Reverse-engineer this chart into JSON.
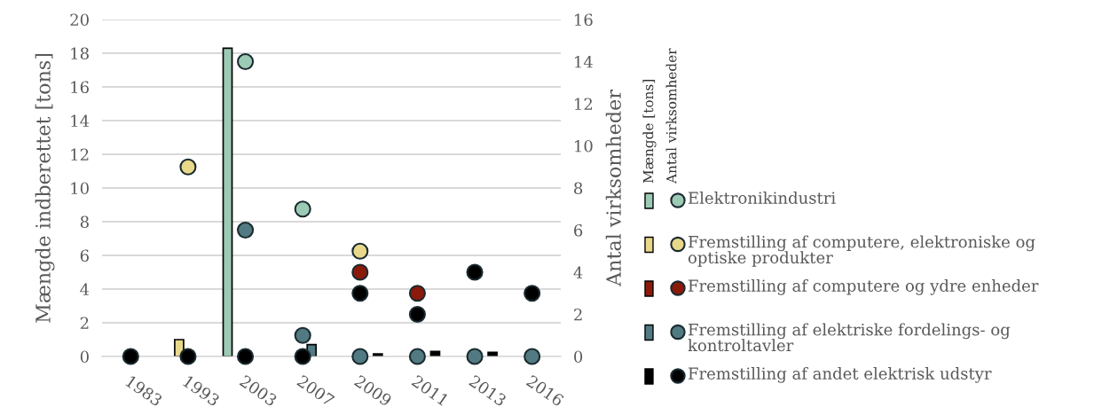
{
  "chart_data": {
    "type": "bar",
    "categories": [
      "1983",
      "1993",
      "2003",
      "2007",
      "2009",
      "2011",
      "2013",
      "2016"
    ],
    "ylabel": "Mængde indberettet [tons]",
    "y2label": "Antal virksomheder",
    "ylim": [
      0,
      20
    ],
    "yticks": [
      0,
      2,
      4,
      6,
      8,
      10,
      12,
      14,
      16,
      18,
      20
    ],
    "y2lim": [
      0,
      16
    ],
    "y2ticks": [
      0,
      2,
      4,
      6,
      8,
      10,
      12,
      14,
      16
    ],
    "grid": "y",
    "legend": "right",
    "annotations": [
      "Mængde [tons]",
      "Antal virksomheder"
    ],
    "series": [
      {
        "color": "#9ccbb5",
        "values": [
          null,
          null,
          18.3,
          null,
          null,
          null,
          null,
          null
        ]
      },
      {
        "color": "#e8d88a",
        "values": [
          null,
          1.0,
          null,
          null,
          null,
          null,
          null,
          null
        ]
      },
      {
        "color": "#8b1a0a",
        "values": [
          null,
          null,
          null,
          null,
          null,
          null,
          null,
          null
        ]
      },
      {
        "color": "#527a82",
        "values": [
          null,
          null,
          null,
          0.7,
          null,
          null,
          null,
          null
        ]
      },
      {
        "color": "#000000",
        "values": [
          null,
          null,
          null,
          null,
          0.15,
          0.3,
          0.25,
          null
        ]
      },
      {
        "name": "Elektronikindustri",
        "type": "scatter",
        "axis": "y2",
        "color": "#9ccbb5",
        "values": [
          null,
          null,
          14,
          7,
          null,
          null,
          null,
          null
        ]
      },
      {
        "name": "Fremstilling af computere, elektroniske og optiske produkter",
        "type": "scatter",
        "axis": "y2",
        "color": "#e8d88a",
        "values": [
          null,
          9,
          null,
          null,
          5,
          null,
          null,
          null
        ]
      },
      {
        "name": "Fremstilling af computere og ydre enheder",
        "type": "scatter",
        "axis": "y2",
        "color": "#8b1a0a",
        "values": [
          null,
          null,
          null,
          null,
          4,
          3,
          null,
          null
        ]
      },
      {
        "name": "Fremstilling af elektriske fordelings- og kontroltavler",
        "type": "scatter",
        "axis": "y2",
        "color": "#527a82",
        "values": [
          null,
          null,
          6,
          1,
          0,
          0,
          0,
          0
        ]
      },
      {
        "name": "Fremstilling af andet elektrisk udstyr",
        "type": "scatter",
        "axis": "y2",
        "color": "#000000",
        "values": [
          0,
          0,
          0,
          0,
          3,
          2,
          4,
          3
        ]
      }
    ]
  }
}
